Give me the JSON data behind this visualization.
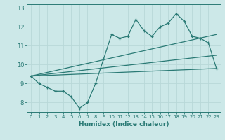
{
  "xlabel": "Humidex (Indice chaleur)",
  "bg_color": "#cce8e8",
  "line_color": "#2a7a75",
  "grid_color": "#b8d8d8",
  "xlim": [
    -0.5,
    23.5
  ],
  "ylim": [
    7.5,
    13.2
  ],
  "yticks": [
    8,
    9,
    10,
    11,
    12,
    13
  ],
  "xticks": [
    0,
    1,
    2,
    3,
    4,
    5,
    6,
    7,
    8,
    9,
    10,
    11,
    12,
    13,
    14,
    15,
    16,
    17,
    18,
    19,
    20,
    21,
    22,
    23
  ],
  "main_line_x": [
    0,
    1,
    2,
    3,
    4,
    5,
    6,
    7,
    8,
    9,
    10,
    11,
    12,
    13,
    14,
    15,
    16,
    17,
    18,
    19,
    20,
    21,
    22,
    23
  ],
  "main_line_y": [
    9.4,
    9.0,
    8.8,
    8.6,
    8.6,
    8.3,
    7.7,
    8.0,
    9.0,
    10.3,
    11.6,
    11.4,
    11.5,
    12.4,
    11.8,
    11.5,
    12.0,
    12.2,
    12.7,
    12.3,
    11.5,
    11.4,
    11.15,
    9.8
  ],
  "trend1_x": [
    0,
    23
  ],
  "trend1_y": [
    9.4,
    11.6
  ],
  "trend2_x": [
    0,
    23
  ],
  "trend2_y": [
    9.4,
    10.5
  ],
  "trend3_x": [
    0,
    23
  ],
  "trend3_y": [
    9.4,
    9.8
  ]
}
